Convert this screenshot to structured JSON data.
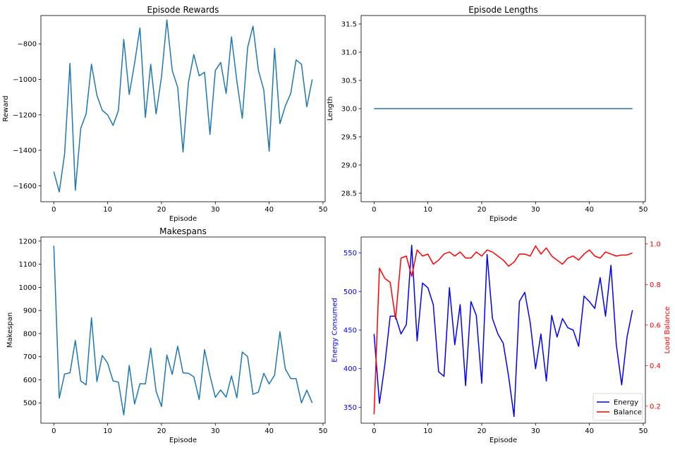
{
  "chart_data": [
    {
      "type": "line",
      "title": "Episode Rewards",
      "xlabel": "Episode",
      "ylabel": "Reward",
      "xlim": [
        -2.4,
        50.4
      ],
      "ylim": [
        -1690,
        -640
      ],
      "xticks": [
        0,
        10,
        20,
        30,
        40,
        50
      ],
      "yticks": [
        -1600,
        -1400,
        -1200,
        -1000,
        -800
      ],
      "colors": {
        "line": "#1f77b4"
      },
      "series": [
        {
          "name": "Reward",
          "x": [
            0,
            1,
            2,
            3,
            4,
            5,
            6,
            7,
            8,
            9,
            10,
            11,
            12,
            13,
            14,
            15,
            16,
            17,
            18,
            19,
            20,
            21,
            22,
            23,
            24,
            25,
            26,
            27,
            28,
            29,
            30,
            31,
            32,
            33,
            34,
            35,
            36,
            37,
            38,
            39,
            40,
            41,
            42,
            43,
            44,
            45,
            46,
            47,
            48
          ],
          "values": [
            -1520,
            -1635,
            -1420,
            -910,
            -1625,
            -1275,
            -1195,
            -915,
            -1090,
            -1175,
            -1200,
            -1260,
            -1175,
            -775,
            -1085,
            -910,
            -710,
            -1215,
            -915,
            -1195,
            -985,
            -665,
            -950,
            -1045,
            -1410,
            -1020,
            -860,
            -980,
            -960,
            -1310,
            -950,
            -905,
            -1080,
            -760,
            -1010,
            -1220,
            -820,
            -700,
            -950,
            -1060,
            -1405,
            -825,
            -1250,
            -1150,
            -1080,
            -890,
            -915,
            -1155,
            -1000
          ]
        }
      ]
    },
    {
      "type": "line",
      "title": "Episode Lengths",
      "xlabel": "Episode",
      "ylabel": "Length",
      "xlim": [
        -2.4,
        50.4
      ],
      "ylim": [
        28.35,
        31.65
      ],
      "xticks": [
        0,
        10,
        20,
        30,
        40,
        50
      ],
      "yticks": [
        28.5,
        29.0,
        29.5,
        30.0,
        30.5,
        31.0,
        31.5
      ],
      "ytick_labels": [
        "28.5",
        "29.0",
        "29.5",
        "30.0",
        "30.5",
        "31.0",
        "31.5"
      ],
      "colors": {
        "line": "#1f77b4"
      },
      "series": [
        {
          "name": "Length",
          "x": [
            0,
            1,
            2,
            3,
            4,
            5,
            6,
            7,
            8,
            9,
            10,
            11,
            12,
            13,
            14,
            15,
            16,
            17,
            18,
            19,
            20,
            21,
            22,
            23,
            24,
            25,
            26,
            27,
            28,
            29,
            30,
            31,
            32,
            33,
            34,
            35,
            36,
            37,
            38,
            39,
            40,
            41,
            42,
            43,
            44,
            45,
            46,
            47,
            48
          ],
          "values": [
            30,
            30,
            30,
            30,
            30,
            30,
            30,
            30,
            30,
            30,
            30,
            30,
            30,
            30,
            30,
            30,
            30,
            30,
            30,
            30,
            30,
            30,
            30,
            30,
            30,
            30,
            30,
            30,
            30,
            30,
            30,
            30,
            30,
            30,
            30,
            30,
            30,
            30,
            30,
            30,
            30,
            30,
            30,
            30,
            30,
            30,
            30,
            30,
            30
          ]
        }
      ]
    },
    {
      "type": "line",
      "title": "Makespans",
      "xlabel": "Episode",
      "ylabel": "Makespan",
      "xlim": [
        -2.4,
        50.4
      ],
      "ylim": [
        412,
        1218
      ],
      "xticks": [
        0,
        10,
        20,
        30,
        40,
        50
      ],
      "yticks": [
        500,
        600,
        700,
        800,
        900,
        1000,
        1100,
        1200
      ],
      "colors": {
        "line": "#1f77b4"
      },
      "series": [
        {
          "name": "Makespan",
          "x": [
            0,
            1,
            2,
            3,
            4,
            5,
            6,
            7,
            8,
            9,
            10,
            11,
            12,
            13,
            14,
            15,
            16,
            17,
            18,
            19,
            20,
            21,
            22,
            23,
            24,
            25,
            26,
            27,
            28,
            29,
            30,
            31,
            32,
            33,
            34,
            35,
            36,
            37,
            38,
            39,
            40,
            41,
            42,
            43,
            44,
            45,
            46,
            47,
            48
          ],
          "values": [
            1180,
            520,
            625,
            630,
            770,
            595,
            578,
            868,
            592,
            705,
            672,
            595,
            590,
            448,
            662,
            495,
            583,
            582,
            737,
            550,
            484,
            707,
            623,
            745,
            630,
            628,
            613,
            515,
            730,
            618,
            524,
            556,
            525,
            617,
            522,
            720,
            700,
            537,
            547,
            628,
            582,
            620,
            808,
            647,
            605,
            605,
            500,
            555,
            500
          ]
        }
      ]
    },
    {
      "type": "line",
      "title": "",
      "xlabel": "Episode",
      "ylabel": "Energy Consumed",
      "ylabel_right": "Load Balance",
      "xlim": [
        -2.4,
        50.4
      ],
      "ylim": [
        329.3,
        570.7
      ],
      "ylim_right": [
        0.116,
        1.034
      ],
      "xticks": [
        0,
        10,
        20,
        30,
        40,
        50
      ],
      "yticks": [
        350,
        400,
        450,
        500,
        550
      ],
      "yticks_right": [
        0.2,
        0.4,
        0.6,
        0.8,
        1.0
      ],
      "ytick_labels_right": [
        "0.2",
        "0.4",
        "0.6",
        "0.8",
        "1.0"
      ],
      "legend": "bottom-right",
      "colors": {
        "left_axis": "#0000ff",
        "right_axis": "#ff0000",
        "legend_border": "#cccccc"
      },
      "series": [
        {
          "name": "Energy",
          "axis": "left",
          "color": "#0000ff",
          "x": [
            0,
            1,
            2,
            3,
            4,
            5,
            6,
            7,
            8,
            9,
            10,
            11,
            12,
            13,
            14,
            15,
            16,
            17,
            18,
            19,
            20,
            21,
            22,
            23,
            24,
            25,
            26,
            27,
            28,
            29,
            30,
            31,
            32,
            33,
            34,
            35,
            36,
            37,
            38,
            39,
            40,
            41,
            42,
            43,
            44,
            45,
            46,
            47,
            48
          ],
          "values": [
            445,
            355,
            405,
            468,
            468,
            445,
            457,
            560,
            436,
            511,
            505,
            483,
            396,
            390,
            505,
            431,
            483,
            378,
            487,
            469,
            381,
            548,
            465,
            445,
            433,
            390,
            338,
            487,
            499,
            460,
            400,
            445,
            384,
            469,
            441,
            465,
            453,
            450,
            429,
            494,
            487,
            478,
            518,
            468,
            534,
            431,
            379,
            441,
            476
          ]
        },
        {
          "name": "Balance",
          "axis": "right",
          "color": "#ff0000",
          "x": [
            0,
            1,
            2,
            3,
            4,
            5,
            6,
            7,
            8,
            9,
            10,
            11,
            12,
            13,
            14,
            15,
            16,
            17,
            18,
            19,
            20,
            21,
            22,
            23,
            24,
            25,
            26,
            27,
            28,
            29,
            30,
            31,
            32,
            33,
            34,
            35,
            36,
            37,
            38,
            39,
            40,
            41,
            42,
            43,
            44,
            45,
            46,
            47,
            48
          ],
          "values": [
            0.16,
            0.88,
            0.83,
            0.81,
            0.63,
            0.93,
            0.94,
            0.84,
            0.97,
            0.94,
            0.95,
            0.9,
            0.92,
            0.95,
            0.96,
            0.94,
            0.96,
            0.93,
            0.93,
            0.96,
            0.94,
            0.97,
            0.96,
            0.94,
            0.92,
            0.89,
            0.91,
            0.95,
            0.95,
            0.94,
            0.99,
            0.95,
            0.98,
            0.94,
            0.92,
            0.9,
            0.93,
            0.94,
            0.92,
            0.95,
            0.97,
            0.94,
            0.93,
            0.96,
            0.95,
            0.94,
            0.945,
            0.945,
            0.955
          ]
        }
      ]
    }
  ]
}
